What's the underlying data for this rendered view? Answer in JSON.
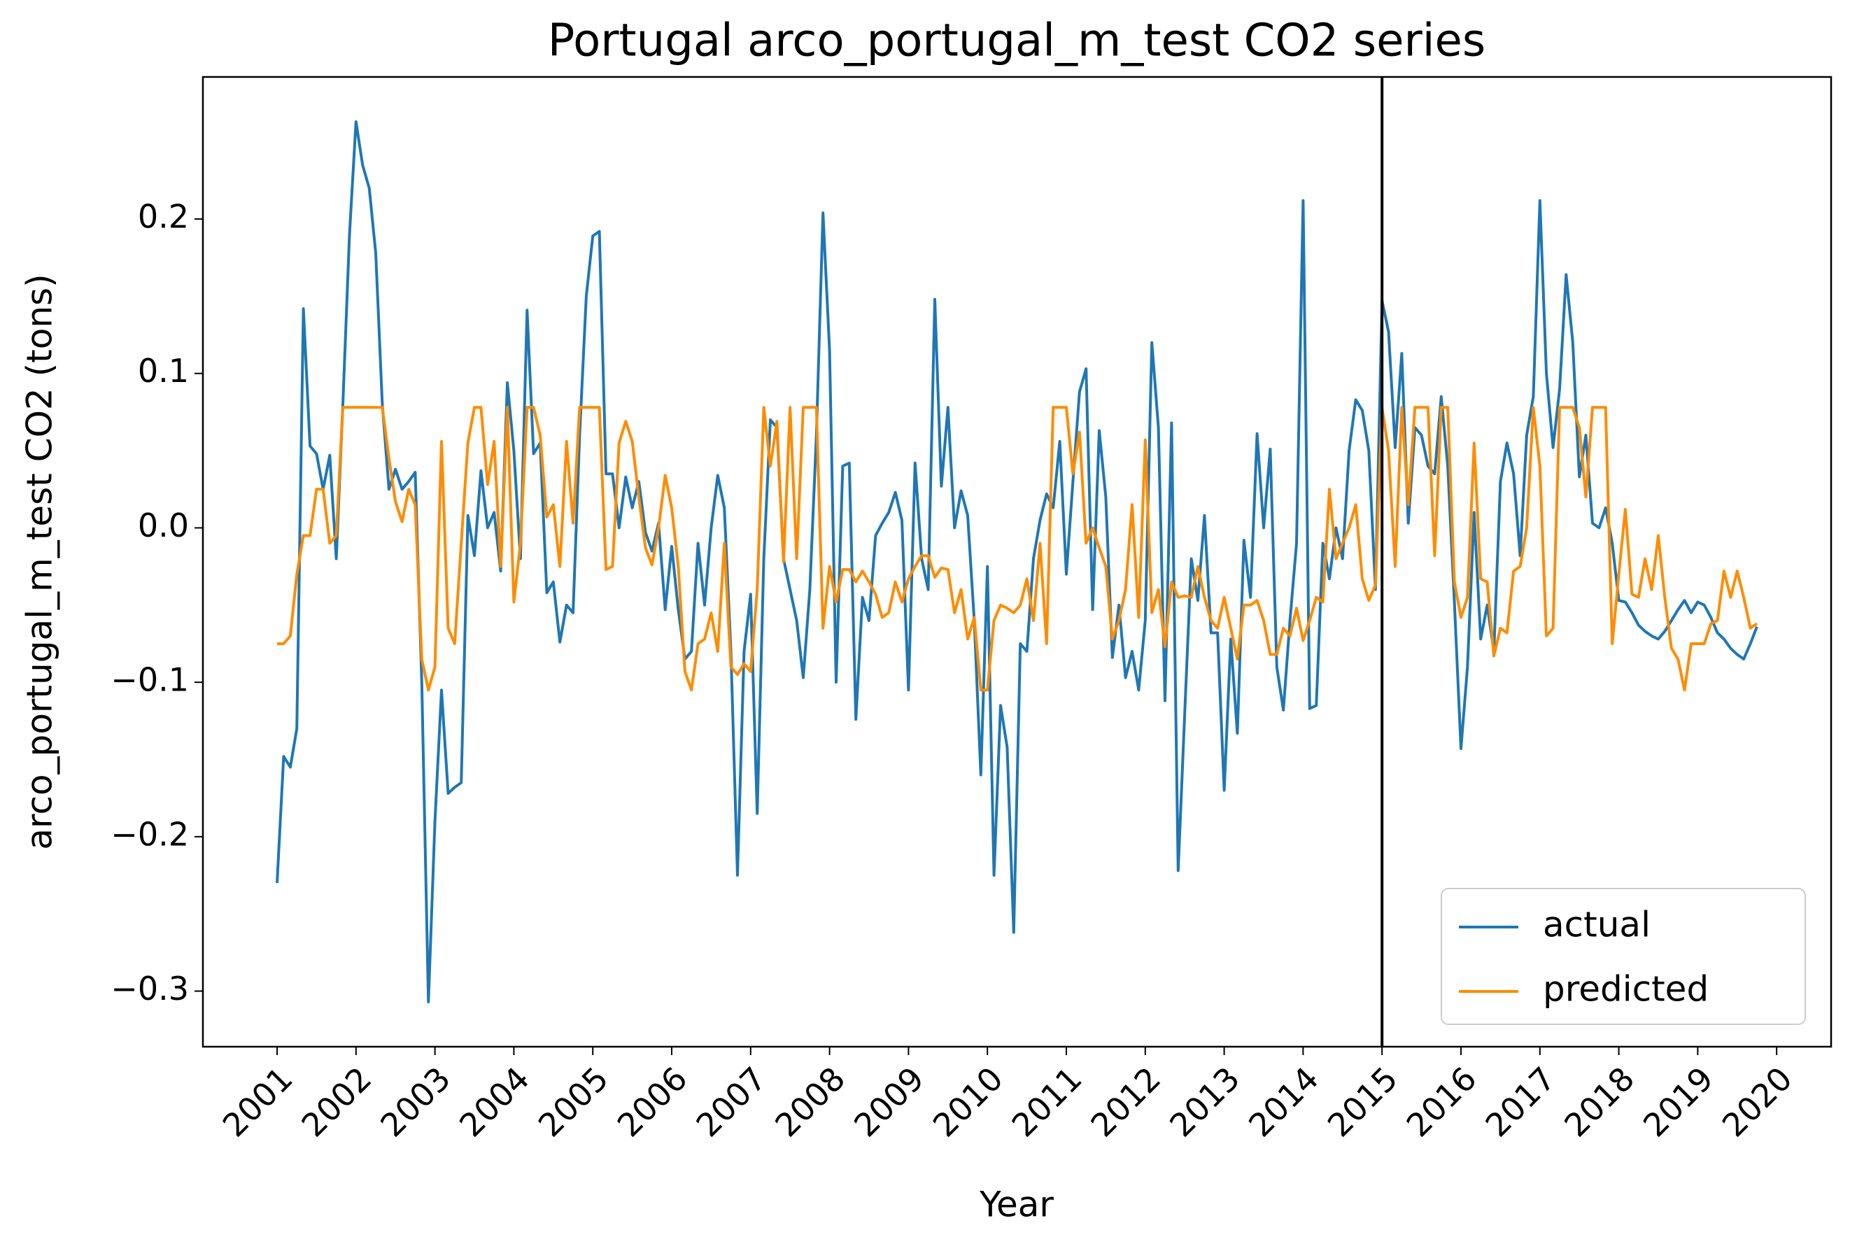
{
  "chart_data": {
    "type": "line",
    "title": "Portugal arco_portugal_m_test CO2 series",
    "xlabel": "Year",
    "ylabel": "arco_portugal_m_test CO2 (tons)",
    "x": [
      2001,
      2001.083,
      2001.167,
      2001.25,
      2001.333,
      2001.417,
      2001.5,
      2001.583,
      2001.667,
      2001.75,
      2001.833,
      2001.917,
      2002,
      2002.083,
      2002.167,
      2002.25,
      2002.333,
      2002.417,
      2002.5,
      2002.583,
      2002.667,
      2002.75,
      2002.833,
      2002.917,
      2003,
      2003.083,
      2003.167,
      2003.25,
      2003.333,
      2003.417,
      2003.5,
      2003.583,
      2003.667,
      2003.75,
      2003.833,
      2003.917,
      2004,
      2004.083,
      2004.167,
      2004.25,
      2004.333,
      2004.417,
      2004.5,
      2004.583,
      2004.667,
      2004.75,
      2004.833,
      2004.917,
      2005,
      2005.083,
      2005.167,
      2005.25,
      2005.333,
      2005.417,
      2005.5,
      2005.583,
      2005.667,
      2005.75,
      2005.833,
      2005.917,
      2006,
      2006.083,
      2006.167,
      2006.25,
      2006.333,
      2006.417,
      2006.5,
      2006.583,
      2006.667,
      2006.75,
      2006.833,
      2006.917,
      2007,
      2007.083,
      2007.167,
      2007.25,
      2007.333,
      2007.417,
      2007.5,
      2007.583,
      2007.667,
      2007.75,
      2007.833,
      2007.917,
      2008,
      2008.083,
      2008.167,
      2008.25,
      2008.333,
      2008.417,
      2008.5,
      2008.583,
      2008.667,
      2008.75,
      2008.833,
      2008.917,
      2009,
      2009.083,
      2009.167,
      2009.25,
      2009.333,
      2009.417,
      2009.5,
      2009.583,
      2009.667,
      2009.75,
      2009.833,
      2009.917,
      2010,
      2010.083,
      2010.167,
      2010.25,
      2010.333,
      2010.417,
      2010.5,
      2010.583,
      2010.667,
      2010.75,
      2010.833,
      2010.917,
      2011,
      2011.083,
      2011.167,
      2011.25,
      2011.333,
      2011.417,
      2011.5,
      2011.583,
      2011.667,
      2011.75,
      2011.833,
      2011.917,
      2012,
      2012.083,
      2012.167,
      2012.25,
      2012.333,
      2012.417,
      2012.5,
      2012.583,
      2012.667,
      2012.75,
      2012.833,
      2012.917,
      2013,
      2013.083,
      2013.167,
      2013.25,
      2013.333,
      2013.417,
      2013.5,
      2013.583,
      2013.667,
      2013.75,
      2013.833,
      2013.917,
      2014,
      2014.083,
      2014.167,
      2014.25,
      2014.333,
      2014.417,
      2014.5,
      2014.583,
      2014.667,
      2014.75,
      2014.833,
      2014.917,
      2015,
      2015.083,
      2015.167,
      2015.25,
      2015.333,
      2015.417,
      2015.5,
      2015.583,
      2015.667,
      2015.75,
      2015.833,
      2015.917,
      2016,
      2016.083,
      2016.167,
      2016.25,
      2016.333,
      2016.417,
      2016.5,
      2016.583,
      2016.667,
      2016.75,
      2016.833,
      2016.917,
      2017,
      2017.083,
      2017.167,
      2017.25,
      2017.333,
      2017.417,
      2017.5,
      2017.583,
      2017.667,
      2017.75,
      2017.833,
      2017.917,
      2018,
      2018.083,
      2018.167,
      2018.25,
      2018.333,
      2018.417,
      2018.5,
      2018.583,
      2018.667,
      2018.75,
      2018.833,
      2018.917,
      2019,
      2019.083,
      2019.167,
      2019.25,
      2019.333,
      2019.417,
      2019.5,
      2019.583,
      2019.667,
      2019.75
    ],
    "series": [
      {
        "name": "actual",
        "color": "#1f77b4",
        "values": [
          -0.23,
          -0.148,
          -0.155,
          -0.13,
          0.142,
          0.053,
          0.048,
          0.025,
          0.047,
          -0.02,
          0.08,
          0.19,
          0.263,
          0.235,
          0.22,
          0.178,
          0.08,
          0.025,
          0.038,
          0.025,
          0.03,
          0.036,
          -0.1,
          -0.307,
          -0.19,
          -0.105,
          -0.172,
          -0.168,
          -0.165,
          0.008,
          -0.018,
          0.037,
          0.0,
          0.01,
          -0.028,
          0.094,
          0.05,
          -0.02,
          0.141,
          0.048,
          0.055,
          -0.042,
          -0.035,
          -0.074,
          -0.05,
          -0.055,
          0.06,
          0.15,
          0.189,
          0.192,
          0.035,
          0.035,
          0.0,
          0.033,
          0.013,
          0.03,
          -0.003,
          -0.015,
          0.003,
          -0.053,
          -0.012,
          -0.053,
          -0.085,
          -0.08,
          -0.01,
          -0.05,
          0.0,
          0.034,
          0.013,
          -0.08,
          -0.225,
          -0.08,
          -0.043,
          -0.185,
          -0.02,
          0.07,
          0.065,
          -0.02,
          -0.04,
          -0.06,
          -0.097,
          -0.04,
          0.06,
          0.204,
          0.115,
          -0.1,
          0.04,
          0.042,
          -0.124,
          -0.045,
          -0.06,
          -0.005,
          0.003,
          0.01,
          0.023,
          0.005,
          -0.105,
          0.042,
          -0.02,
          -0.04,
          0.148,
          0.027,
          0.078,
          0.0,
          0.024,
          0.008,
          -0.06,
          -0.16,
          -0.025,
          -0.225,
          -0.115,
          -0.142,
          -0.262,
          -0.075,
          -0.08,
          -0.02,
          0.005,
          0.022,
          0.013,
          0.056,
          -0.03,
          0.03,
          0.088,
          0.103,
          -0.053,
          0.063,
          0.02,
          -0.084,
          -0.05,
          -0.097,
          -0.08,
          -0.105,
          -0.06,
          0.12,
          0.065,
          -0.112,
          0.068,
          -0.222,
          -0.12,
          -0.02,
          -0.047,
          0.008,
          -0.068,
          -0.068,
          -0.17,
          -0.072,
          -0.133,
          -0.008,
          -0.045,
          0.061,
          0.0,
          0.051,
          -0.09,
          -0.118,
          -0.06,
          -0.01,
          0.212,
          -0.117,
          -0.115,
          -0.01,
          -0.033,
          0.0,
          -0.02,
          0.05,
          0.083,
          0.076,
          0.05,
          -0.04,
          0.147,
          0.127,
          0.052,
          0.113,
          0.003,
          0.065,
          0.06,
          0.04,
          0.035,
          0.085,
          0.04,
          -0.048,
          -0.143,
          -0.09,
          0.01,
          -0.072,
          -0.05,
          -0.08,
          0.03,
          0.055,
          0.035,
          -0.018,
          0.06,
          0.085,
          0.212,
          0.1,
          0.052,
          0.09,
          0.164,
          0.12,
          0.033,
          0.06,
          0.003,
          0.0,
          0.013,
          -0.01,
          -0.047,
          -0.048,
          -0.055,
          -0.063,
          -0.067,
          -0.07,
          -0.072,
          -0.067,
          -0.06,
          -0.053,
          -0.047,
          -0.055,
          -0.048,
          -0.05,
          -0.058,
          -0.068,
          -0.072,
          -0.078,
          -0.082,
          -0.085,
          -0.075,
          -0.064
        ]
      },
      {
        "name": "predicted",
        "color": "#ff8c00",
        "values": [
          -0.075,
          -0.075,
          -0.07,
          -0.03,
          -0.005,
          -0.005,
          0.025,
          0.025,
          -0.01,
          -0.005,
          0.078,
          0.078,
          0.078,
          0.078,
          0.078,
          0.078,
          0.078,
          0.045,
          0.017,
          0.004,
          0.025,
          0.015,
          -0.085,
          -0.105,
          -0.09,
          0.056,
          -0.065,
          -0.075,
          -0.01,
          0.055,
          0.078,
          0.078,
          0.028,
          0.056,
          -0.025,
          0.078,
          -0.048,
          -0.01,
          0.078,
          0.078,
          0.06,
          0.007,
          0.015,
          -0.025,
          0.056,
          0.003,
          0.078,
          0.078,
          0.078,
          0.078,
          -0.027,
          -0.025,
          0.055,
          0.069,
          0.056,
          0.02,
          -0.013,
          -0.024,
          0.0,
          0.034,
          0.013,
          -0.025,
          -0.093,
          -0.105,
          -0.075,
          -0.072,
          -0.055,
          -0.08,
          -0.01,
          -0.09,
          -0.095,
          -0.088,
          -0.093,
          -0.04,
          0.078,
          0.04,
          0.069,
          -0.022,
          0.078,
          -0.02,
          0.078,
          0.078,
          0.078,
          -0.065,
          -0.025,
          -0.048,
          -0.027,
          -0.027,
          -0.035,
          -0.028,
          -0.035,
          -0.043,
          -0.058,
          -0.055,
          -0.035,
          -0.048,
          -0.033,
          -0.025,
          -0.018,
          -0.018,
          -0.032,
          -0.026,
          -0.027,
          -0.055,
          -0.04,
          -0.072,
          -0.058,
          -0.105,
          -0.105,
          -0.06,
          -0.05,
          -0.052,
          -0.055,
          -0.05,
          -0.033,
          -0.06,
          -0.01,
          -0.075,
          0.078,
          0.078,
          0.078,
          0.035,
          0.062,
          -0.01,
          0.0,
          -0.013,
          -0.025,
          -0.072,
          -0.06,
          -0.04,
          0.015,
          -0.058,
          0.057,
          -0.055,
          -0.04,
          -0.077,
          -0.035,
          -0.045,
          -0.044,
          -0.045,
          -0.025,
          -0.045,
          -0.06,
          -0.065,
          -0.045,
          -0.065,
          -0.085,
          -0.05,
          -0.05,
          -0.047,
          -0.06,
          -0.082,
          -0.082,
          -0.065,
          -0.07,
          -0.052,
          -0.073,
          -0.06,
          -0.045,
          -0.048,
          0.025,
          -0.02,
          -0.01,
          0.0,
          0.015,
          -0.033,
          -0.047,
          -0.037,
          0.078,
          0.05,
          -0.025,
          0.078,
          0.015,
          0.078,
          0.078,
          0.078,
          -0.018,
          0.078,
          0.078,
          -0.035,
          -0.058,
          -0.045,
          0.055,
          -0.033,
          -0.035,
          -0.083,
          -0.065,
          -0.068,
          -0.028,
          -0.025,
          0.0,
          0.078,
          0.04,
          -0.07,
          -0.065,
          0.078,
          0.078,
          0.078,
          0.065,
          0.02,
          0.078,
          0.078,
          0.078,
          -0.075,
          -0.03,
          0.012,
          -0.043,
          -0.045,
          -0.02,
          -0.04,
          -0.005,
          -0.045,
          -0.078,
          -0.085,
          -0.105,
          -0.075,
          -0.075,
          -0.075,
          -0.062,
          -0.06,
          -0.028,
          -0.045,
          -0.028,
          -0.045,
          -0.065,
          -0.062
        ]
      }
    ],
    "vline": {
      "x": 2015,
      "color": "#000000"
    },
    "xlim": [
      2000.06,
      2020.69
    ],
    "xticks": [
      2001,
      2002,
      2003,
      2004,
      2005,
      2006,
      2007,
      2008,
      2009,
      2010,
      2011,
      2012,
      2013,
      2014,
      2015,
      2016,
      2017,
      2018,
      2019,
      2020
    ],
    "ylim": [
      -0.336,
      0.292
    ],
    "yticks": [
      {
        "value": -0.3,
        "label": "−0.3"
      },
      {
        "value": -0.2,
        "label": "−0.2"
      },
      {
        "value": -0.1,
        "label": "−0.1"
      },
      {
        "value": 0,
        "label": "0.0"
      },
      {
        "value": 0.1,
        "label": "0.1"
      },
      {
        "value": 0.2,
        "label": "0.2"
      }
    ],
    "legend": "lower right"
  }
}
